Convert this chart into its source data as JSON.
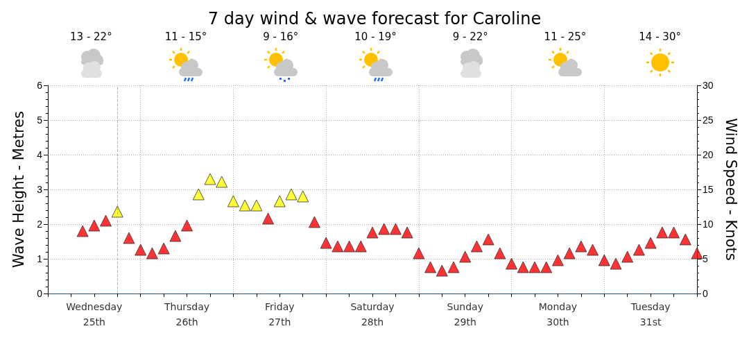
{
  "chart_data": {
    "type": "scatter",
    "title": "7 day wind & wave forecast for Caroline",
    "ylabel": "Wave Height - Metres",
    "y2label": "Wind Speed - Knots",
    "annotations": [
      "13 - 22°",
      "11 - 15°",
      "9 - 16°",
      "10 - 19°",
      "9 - 22°",
      "11 - 25°",
      "14 - 30°"
    ],
    "categories": [
      null,
      null,
      null,
      null,
      "Wednesday\n25th",
      null,
      null,
      null,
      null,
      null,
      null,
      null,
      "Thursday\n26th",
      null,
      null,
      null,
      null,
      null,
      null,
      null,
      "Friday\n27th",
      null,
      null,
      null,
      null,
      null,
      null,
      null,
      "Saturday\n28th",
      null,
      null,
      null,
      null,
      null,
      null,
      null,
      "Sunday\n29th",
      null,
      null,
      null,
      null,
      null,
      null,
      null,
      "Monday\n30th",
      null,
      null,
      null,
      null,
      null,
      null,
      null,
      "Tuesday\n31st",
      null,
      null,
      null,
      null
    ],
    "ylim": [
      0,
      6
    ],
    "yticks": [
      0,
      1,
      2,
      3,
      4,
      5,
      6
    ],
    "y2lim": [
      0,
      30
    ],
    "y2ticks": [
      0,
      5,
      10,
      15,
      20,
      25,
      30
    ],
    "grid": true,
    "marker": "triangle",
    "series": [
      {
        "axis": "y2",
        "values": [
          null,
          null,
          null,
          9.0,
          9.8,
          10.5,
          11.8,
          8.0,
          6.3,
          5.8,
          6.5,
          8.3,
          9.8,
          14.3,
          16.5,
          16.1,
          13.3,
          12.7,
          12.7,
          10.8,
          13.3,
          14.3,
          14.0,
          10.3,
          7.3,
          6.8,
          6.8,
          6.8,
          8.8,
          9.3,
          9.3,
          8.8,
          5.8,
          3.8,
          3.3,
          3.8,
          5.3,
          6.8,
          7.8,
          5.8,
          4.3,
          3.8,
          3.8,
          3.8,
          4.8,
          5.8,
          6.8,
          6.3,
          4.8,
          4.3,
          5.3,
          6.3,
          7.3,
          8.8,
          8.8,
          7.8,
          5.8
        ],
        "colors": [
          null,
          null,
          null,
          "#ff0000",
          "#ff0000",
          "#ff0000",
          "#ffff00",
          "#ff0000",
          "#ff0000",
          "#ff0000",
          "#ff0000",
          "#ff0000",
          "#ff0000",
          "#ffff00",
          "#ffff00",
          "#ffff00",
          "#ffff00",
          "#ffff00",
          "#ffff00",
          "#ff0000",
          "#ffff00",
          "#ffff00",
          "#ffff00",
          "#ff0000",
          "#ff0000",
          "#ff0000",
          "#ff0000",
          "#ff0000",
          "#ff0000",
          "#ff0000",
          "#ff0000",
          "#ff0000",
          "#ff0000",
          "#ff0000",
          "#ff0000",
          "#ff0000",
          "#ff0000",
          "#ff0000",
          "#ff0000",
          "#ff0000",
          "#ff0000",
          "#ff0000",
          "#ff0000",
          "#ff0000",
          "#ff0000",
          "#ff0000",
          "#ff0000",
          "#ff0000",
          "#ff0000",
          "#ff0000",
          "#ff0000",
          "#ff0000",
          "#ff0000",
          "#ff0000",
          "#ff0000",
          "#ff0000",
          "#ff0000"
        ]
      }
    ]
  }
}
